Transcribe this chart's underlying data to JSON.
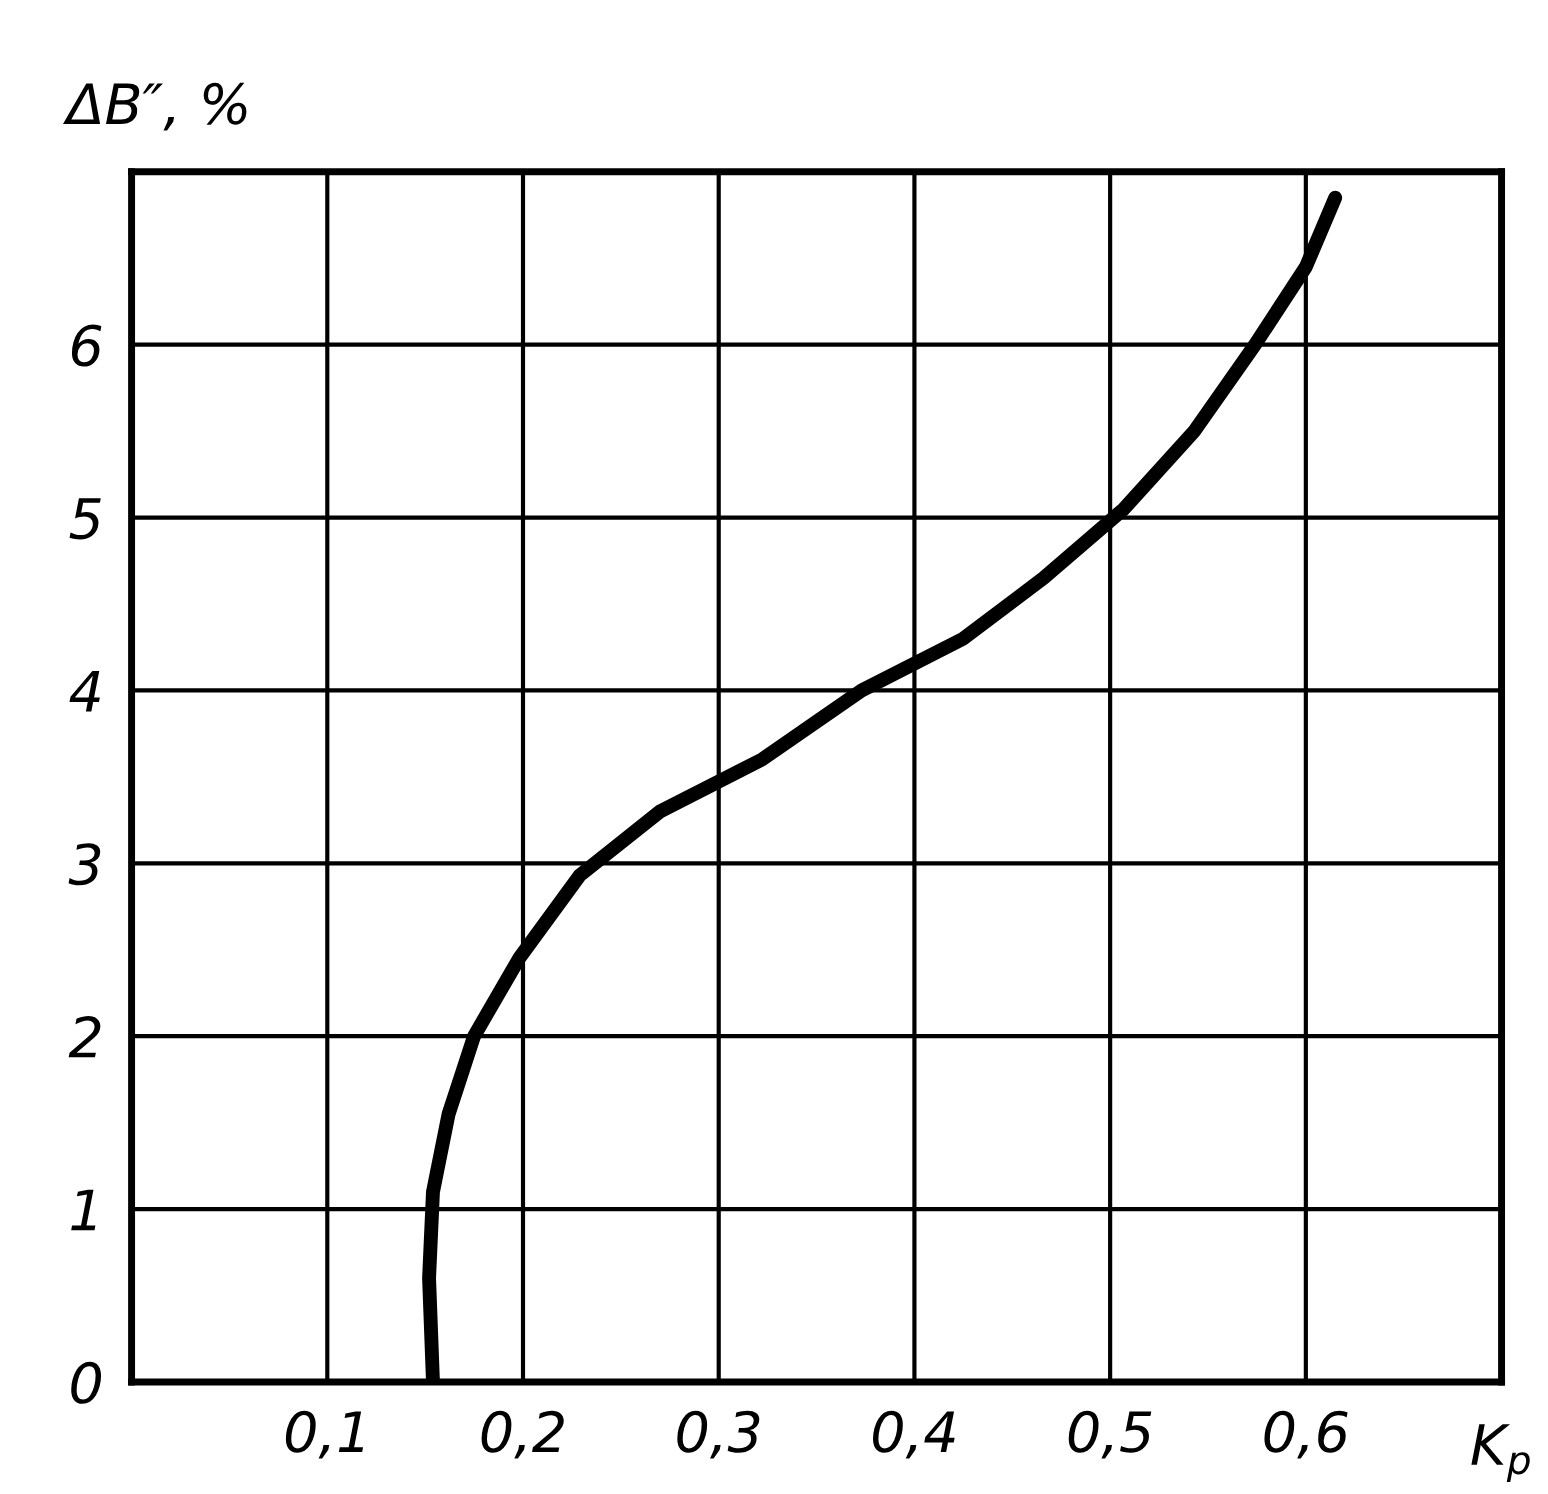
{
  "chart_data": {
    "type": "line",
    "xlabel": "K$_{p}$",
    "ylabel": "ΔB″, %",
    "xlim": [
      0,
      0.7
    ],
    "ylim": [
      0,
      7
    ],
    "xticks": [
      {
        "value": 0.1,
        "label": "0,1"
      },
      {
        "value": 0.2,
        "label": "0,2"
      },
      {
        "value": 0.3,
        "label": "0,3"
      },
      {
        "value": 0.4,
        "label": "0,4"
      },
      {
        "value": 0.5,
        "label": "0,5"
      },
      {
        "value": 0.6,
        "label": "0,6"
      }
    ],
    "yticks": [
      0,
      1,
      2,
      3,
      4,
      5,
      6
    ],
    "grid": true,
    "line_style": "solid",
    "marker": "none",
    "series": [
      {
        "color": "#000000",
        "x": [
          0.154,
          0.152,
          0.154,
          0.162,
          0.175,
          0.198,
          0.229,
          0.27,
          0.322,
          0.373,
          0.425,
          0.466,
          0.507,
          0.543,
          0.574,
          0.6,
          0.615
        ],
        "values": [
          0,
          0.6,
          1.1,
          1.55,
          2.0,
          2.45,
          2.93,
          3.3,
          3.6,
          4.0,
          4.3,
          4.65,
          5.05,
          5.5,
          6.0,
          6.45,
          6.85
        ]
      }
    ]
  }
}
